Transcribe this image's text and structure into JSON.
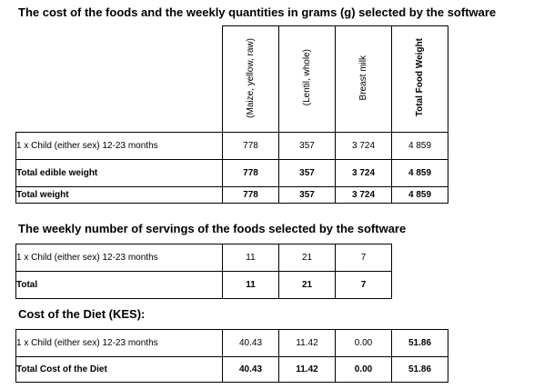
{
  "section1": {
    "title": "The cost of the foods and the weekly quantities in grams (g) selected by the software",
    "columns": [
      "(Maize, yellow, raw)",
      "(Lentil, whole)",
      "Breast milk",
      "Total Food Weight"
    ],
    "rows": [
      {
        "label": "1 x Child (either sex) 12-23 months",
        "values": [
          "778",
          "357",
          "3 724",
          "4 859"
        ],
        "bold": false
      },
      {
        "label": "Total edible weight",
        "values": [
          "778",
          "357",
          "3 724",
          "4 859"
        ],
        "bold": true
      },
      {
        "label": "Total weight",
        "values": [
          "778",
          "357",
          "3 724",
          "4 859"
        ],
        "bold": true
      }
    ]
  },
  "section2": {
    "title": "The weekly number of servings of the foods selected by the software",
    "rows": [
      {
        "label": "1 x Child (either sex) 12-23 months",
        "values": [
          "11",
          "21",
          "7"
        ],
        "bold": false
      },
      {
        "label": "Total",
        "values": [
          "11",
          "21",
          "7"
        ],
        "bold": true
      }
    ]
  },
  "section3": {
    "title": "Cost of the Diet (KES):",
    "rows": [
      {
        "label": "1 x Child (either sex) 12-23 months",
        "values": [
          "40.43",
          "11.42",
          "0.00",
          "51.86"
        ],
        "bold": false
      },
      {
        "label": "Total Cost of the Diet",
        "values": [
          "40.43",
          "11.42",
          "0.00",
          "51.86"
        ],
        "bold": true
      }
    ]
  }
}
